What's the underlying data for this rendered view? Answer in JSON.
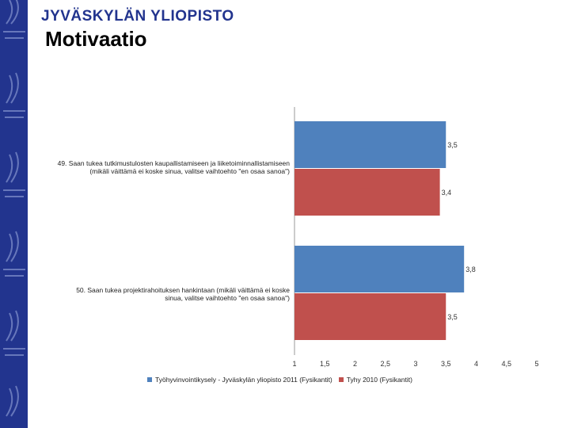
{
  "header": {
    "logo_text": "JYVÄSKYLÄN YLIOPISTO",
    "title": "Motivaatio"
  },
  "colors": {
    "brand": "#22348e",
    "series1": "#4f81bd",
    "series2": "#c0504d"
  },
  "chart_data": {
    "type": "bar",
    "orientation": "horizontal",
    "categories": [
      "49. Saan tukea tutkimustulosten kaupallistamiseen ja liiketoiminnallistamiseen (mikäli väittämä ei koske sinua, valitse vaihtoehto \"en osaa sanoa\")",
      "50. Saan tukea projektirahoituksen hankintaan (mikäli väittämä ei koske sinua, valitse vaihtoehto \"en osaa sanoa\")"
    ],
    "category_lines": [
      [
        "49. Saan tukea tutkimustulosten kaupallistamiseen ja liiketoiminnallistamiseen",
        "(mikäli väittämä ei koske sinua, valitse vaihtoehto \"en osaa sanoa\")"
      ],
      [
        "50. Saan tukea projektirahoituksen hankintaan (mikäli väittämä ei koske",
        "sinua, valitse vaihtoehto \"en osaa sanoa\")"
      ]
    ],
    "series": [
      {
        "name": "Työhyvinvointikysely - Jyväskylän yliopisto 2011 (Fysikantit)",
        "values": [
          3.5,
          3.8
        ],
        "labels": [
          "3,5",
          "3,8"
        ],
        "color": "#4f81bd"
      },
      {
        "name": "Tyhy 2010 (Fysikantit)",
        "values": [
          3.4,
          3.5
        ],
        "labels": [
          "3,4",
          "3,5"
        ],
        "color": "#c0504d"
      }
    ],
    "xlim": [
      1,
      5
    ],
    "x_ticks": [
      1,
      1.5,
      2,
      2.5,
      3,
      3.5,
      4,
      4.5,
      5
    ],
    "x_tick_labels": [
      "1",
      "1,5",
      "2",
      "2,5",
      "3",
      "3,5",
      "4",
      "4,5",
      "5"
    ],
    "legend_position": "bottom",
    "grid": false
  }
}
